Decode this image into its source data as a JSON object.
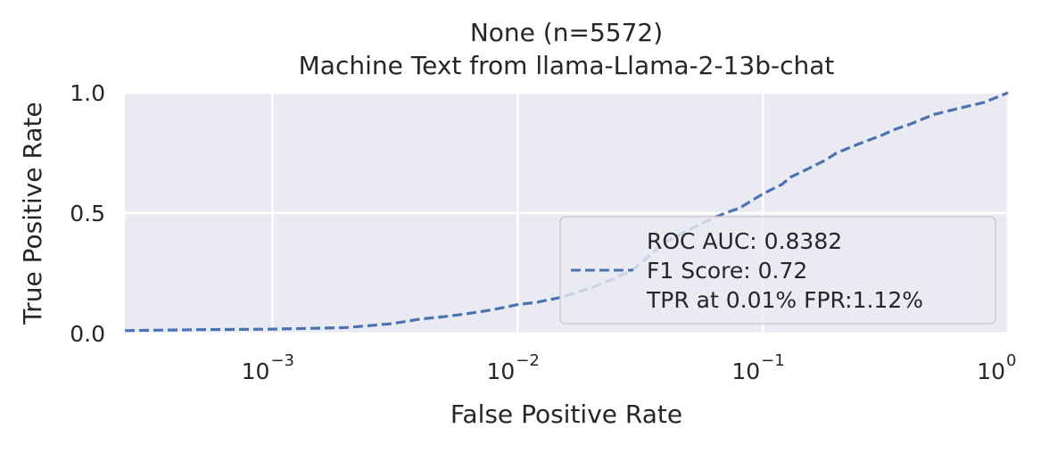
{
  "chart_data": {
    "type": "line",
    "title": "None (n=5572)",
    "subtitle": "Machine Text from llama-Llama-2-13b-chat",
    "xlabel": "False Positive Rate",
    "ylabel": "True Positive Rate",
    "x_scale": "log",
    "xlim": [
      0.00025,
      1.0
    ],
    "ylim": [
      0.0,
      1.0
    ],
    "grid": true,
    "x_ticks": [
      {
        "value": 0.001,
        "base": "10",
        "exp": "−3"
      },
      {
        "value": 0.01,
        "base": "10",
        "exp": "−2"
      },
      {
        "value": 0.1,
        "base": "10",
        "exp": "−1"
      },
      {
        "value": 1.0,
        "base": "10",
        "exp": "0"
      }
    ],
    "y_ticks": [
      {
        "value": 0.0,
        "label": "0.0"
      },
      {
        "value": 0.5,
        "label": "0.5"
      },
      {
        "value": 1.0,
        "label": "1.0"
      }
    ],
    "legend": {
      "placement": "lower-right",
      "lines": [
        "ROC AUC: 0.8382",
        "F1 Score: 0.72",
        "TPR at 0.01% FPR:1.12%"
      ]
    },
    "series": [
      {
        "color": "#4c72b0",
        "style": "dashed",
        "x": [
          0.00025,
          0.00035,
          0.0005,
          0.001,
          0.0015,
          0.002,
          0.0025,
          0.003,
          0.0035,
          0.004,
          0.005,
          0.006,
          0.007,
          0.008,
          0.009,
          0.01,
          0.012,
          0.015,
          0.02,
          0.025,
          0.03,
          0.035,
          0.04,
          0.05,
          0.06,
          0.07,
          0.08,
          0.1,
          0.12,
          0.13,
          0.15,
          0.18,
          0.2,
          0.25,
          0.3,
          0.35,
          0.4,
          0.5,
          0.6,
          0.8,
          1.0
        ],
        "y": [
          0.012,
          0.014,
          0.016,
          0.018,
          0.022,
          0.025,
          0.033,
          0.04,
          0.05,
          0.06,
          0.07,
          0.08,
          0.09,
          0.1,
          0.11,
          0.12,
          0.13,
          0.15,
          0.19,
          0.23,
          0.27,
          0.33,
          0.38,
          0.43,
          0.47,
          0.5,
          0.52,
          0.58,
          0.62,
          0.65,
          0.68,
          0.72,
          0.75,
          0.79,
          0.82,
          0.85,
          0.87,
          0.91,
          0.93,
          0.96,
          1.0
        ]
      }
    ]
  }
}
